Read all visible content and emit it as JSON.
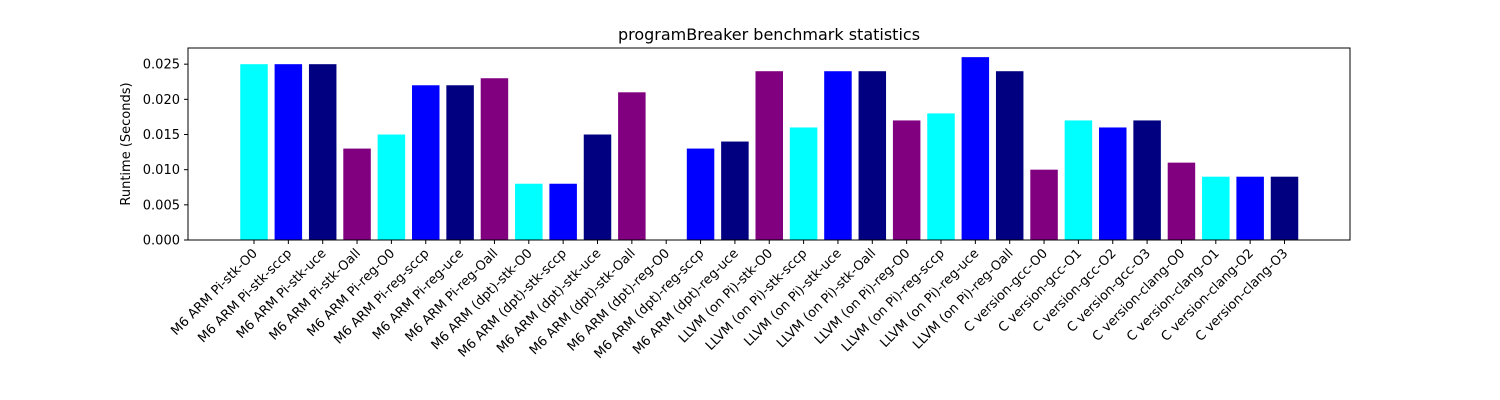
{
  "chart_data": {
    "type": "bar",
    "title": "programBreaker benchmark statistics",
    "xlabel": "",
    "ylabel": "Runtime (Seconds)",
    "ylim": [
      0,
      0.0273
    ],
    "yticks": [
      "0.000",
      "0.005",
      "0.010",
      "0.015",
      "0.020",
      "0.025"
    ],
    "grid": false,
    "legend": "none",
    "colors": {
      "cyan": "#00ffff",
      "blue": "#0000ff",
      "navy": "#000080",
      "purple": "#800080"
    },
    "categories": [
      "M6 ARM Pi-stk-O0",
      "M6 ARM Pi-stk-sccp",
      "M6 ARM Pi-stk-uce",
      "M6 ARM Pi-stk-Oall",
      "M6 ARM Pi-reg-O0",
      "M6 ARM Pi-reg-sccp",
      "M6 ARM Pi-reg-uce",
      "M6 ARM Pi-reg-Oall",
      "M6 ARM (dpt)-stk-O0",
      "M6 ARM (dpt)-stk-sccp",
      "M6 ARM (dpt)-stk-uce",
      "M6 ARM (dpt)-stk-Oall",
      "M6 ARM (dpt)-reg-O0",
      "M6 ARM (dpt)-reg-sccp",
      "M6 ARM (dpt)-reg-uce",
      "LLVM (on Pi)-stk-O0",
      "LLVM (on Pi)-stk-sccp",
      "LLVM (on Pi)-stk-uce",
      "LLVM (on Pi)-stk-Oall",
      "LLVM (on Pi)-reg-O0",
      "LLVM (on Pi)-reg-sccp",
      "LLVM (on Pi)-reg-uce",
      "LLVM (on Pi)-reg-Oall",
      "C version-gcc-O0",
      "C version-gcc-O1",
      "C version-gcc-O2",
      "C version-gcc-O3",
      "C version-clang-O0",
      "C version-clang-O1",
      "C version-clang-O2",
      "C version-clang-O3"
    ],
    "values": [
      0.025,
      0.025,
      0.025,
      0.013,
      0.015,
      0.022,
      0.022,
      0.023,
      0.008,
      0.008,
      0.015,
      0.021,
      0.0,
      0.013,
      0.014,
      0.024,
      0.016,
      0.024,
      0.024,
      0.017,
      0.018,
      0.026,
      0.024,
      0.01,
      0.017,
      0.016,
      0.017,
      0.011,
      0.009,
      0.009,
      0.009
    ],
    "bar_colors": [
      "cyan",
      "blue",
      "navy",
      "purple",
      "cyan",
      "blue",
      "navy",
      "purple",
      "cyan",
      "blue",
      "navy",
      "purple",
      "cyan",
      "blue",
      "navy",
      "purple",
      "cyan",
      "blue",
      "navy",
      "purple",
      "cyan",
      "blue",
      "navy",
      "purple",
      "cyan",
      "blue",
      "navy",
      "purple",
      "cyan",
      "blue",
      "navy"
    ]
  }
}
